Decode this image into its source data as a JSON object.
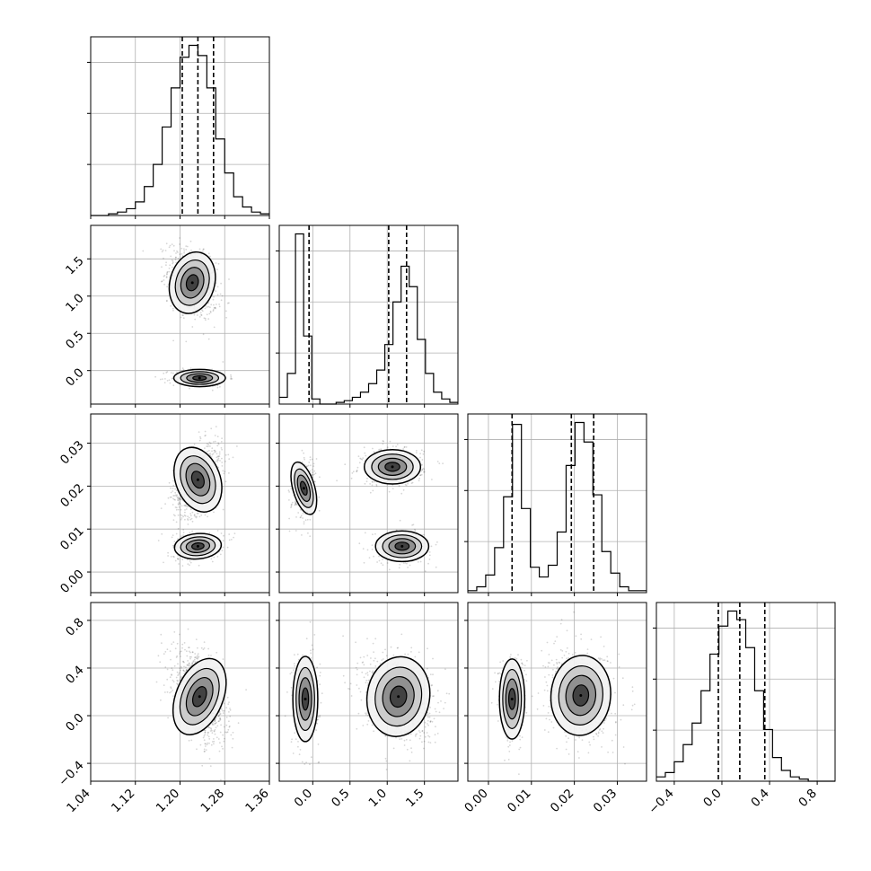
{
  "chart_data": {
    "type": "corner",
    "parameters": [
      "p0",
      "p1",
      "p2",
      "p3"
    ],
    "axes": {
      "p0": {
        "range": [
          1.04,
          1.36
        ],
        "ticks": [
          1.04,
          1.12,
          1.2,
          1.28,
          1.36
        ],
        "tick_labels": [
          "1.04",
          "1.12",
          "1.20",
          "1.28",
          "1.36"
        ]
      },
      "p1": {
        "range": [
          -0.45,
          1.95
        ],
        "ticks": [
          0.0,
          0.5,
          1.0,
          1.5
        ],
        "tick_labels": [
          "0.0",
          "0.5",
          "1.0",
          "1.5"
        ]
      },
      "p2": {
        "range": [
          -0.0048,
          0.0368
        ],
        "ticks": [
          0.0,
          0.01,
          0.02,
          0.03
        ],
        "tick_labels": [
          "0.00",
          "0.01",
          "0.02",
          "0.03"
        ]
      },
      "p3": {
        "range": [
          -0.55,
          0.95
        ],
        "ticks": [
          -0.4,
          0.0,
          0.4,
          0.8
        ],
        "tick_labels": [
          "−0.4",
          "0.0",
          "0.4",
          "0.8"
        ]
      }
    },
    "histograms": [
      {
        "param": "p0",
        "bins": [
          1.04,
          1.36
        ],
        "counts": [
          0,
          0,
          1,
          2,
          4,
          8,
          17,
          30,
          52,
          75,
          93,
          100,
          94,
          75,
          45,
          25,
          11,
          5,
          2,
          1
        ],
        "quantiles": [
          1.204,
          1.232,
          1.26
        ]
      },
      {
        "param": "p1",
        "bins": [
          -0.45,
          1.95
        ],
        "counts": [
          4,
          18,
          100,
          40,
          3,
          0,
          0,
          1,
          2,
          4,
          7,
          12,
          20,
          35,
          60,
          81,
          69,
          38,
          18,
          7,
          3,
          1
        ],
        "quantiles": [
          -0.05,
          1.02,
          1.26
        ]
      },
      {
        "param": "p2",
        "bins": [
          -0.0048,
          0.0368
        ],
        "counts": [
          1,
          3,
          9,
          23,
          49,
          86,
          43,
          13,
          8,
          14,
          31,
          65,
          87,
          77,
          50,
          21,
          10,
          3,
          1,
          1
        ],
        "quantiles": [
          0.0055,
          0.0193,
          0.0245
        ]
      },
      {
        "param": "p3",
        "bins": [
          -0.55,
          0.95
        ],
        "counts": [
          2,
          4,
          9,
          17,
          27,
          42,
          59,
          72,
          79,
          75,
          62,
          42,
          24,
          11,
          5,
          2,
          1,
          0,
          0,
          0
        ],
        "quantiles": [
          -0.03,
          0.15,
          0.36
        ]
      }
    ],
    "pairs": [
      {
        "x": "p0",
        "y": "p1",
        "modes": [
          {
            "cx": 1.222,
            "cy": 1.18,
            "sx": 0.019,
            "sy": 0.2,
            "rho": -0.35,
            "weight": 0.72
          },
          {
            "cx": 1.235,
            "cy": -0.1,
            "sx": 0.022,
            "sy": 0.055,
            "rho": 0.0,
            "weight": 0.28
          }
        ]
      },
      {
        "x": "p0",
        "y": "p2",
        "modes": [
          {
            "cx": 1.232,
            "cy": 0.0215,
            "sx": 0.019,
            "sy": 0.0037,
            "rho": 0.45,
            "weight": 0.72
          },
          {
            "cx": 1.232,
            "cy": 0.006,
            "sx": 0.02,
            "sy": 0.0014,
            "rho": 0.25,
            "weight": 0.28
          }
        ]
      },
      {
        "x": "p0",
        "y": "p3",
        "modes": [
          {
            "cx": 1.235,
            "cy": 0.16,
            "sx": 0.02,
            "sy": 0.16,
            "rho": -0.45,
            "weight": 1.0
          }
        ]
      },
      {
        "x": "p1",
        "y": "p2",
        "modes": [
          {
            "cx": -0.12,
            "cy": 0.0195,
            "sx": 0.07,
            "sy": 0.003,
            "rho": 0.2,
            "weight": 0.28
          },
          {
            "cx": 1.07,
            "cy": 0.0245,
            "sx": 0.18,
            "sy": 0.0019,
            "rho": 0.0,
            "weight": 0.42
          },
          {
            "cx": 1.2,
            "cy": 0.006,
            "sx": 0.17,
            "sy": 0.0017,
            "rho": 0.0,
            "weight": 0.3
          }
        ]
      },
      {
        "x": "p1",
        "y": "p3",
        "modes": [
          {
            "cx": -0.1,
            "cy": 0.14,
            "sx": 0.08,
            "sy": 0.17,
            "rho": 0.0,
            "weight": 0.28
          },
          {
            "cx": 1.15,
            "cy": 0.16,
            "sx": 0.2,
            "sy": 0.16,
            "rho": -0.2,
            "weight": 0.72
          }
        ]
      },
      {
        "x": "p2",
        "y": "p3",
        "modes": [
          {
            "cx": 0.0055,
            "cy": 0.14,
            "sx": 0.0014,
            "sy": 0.16,
            "rho": 0.0,
            "weight": 0.28
          },
          {
            "cx": 0.0215,
            "cy": 0.17,
            "sx": 0.0033,
            "sy": 0.16,
            "rho": -0.1,
            "weight": 0.72
          }
        ]
      }
    ],
    "contour_levels": 4,
    "grid": true
  }
}
